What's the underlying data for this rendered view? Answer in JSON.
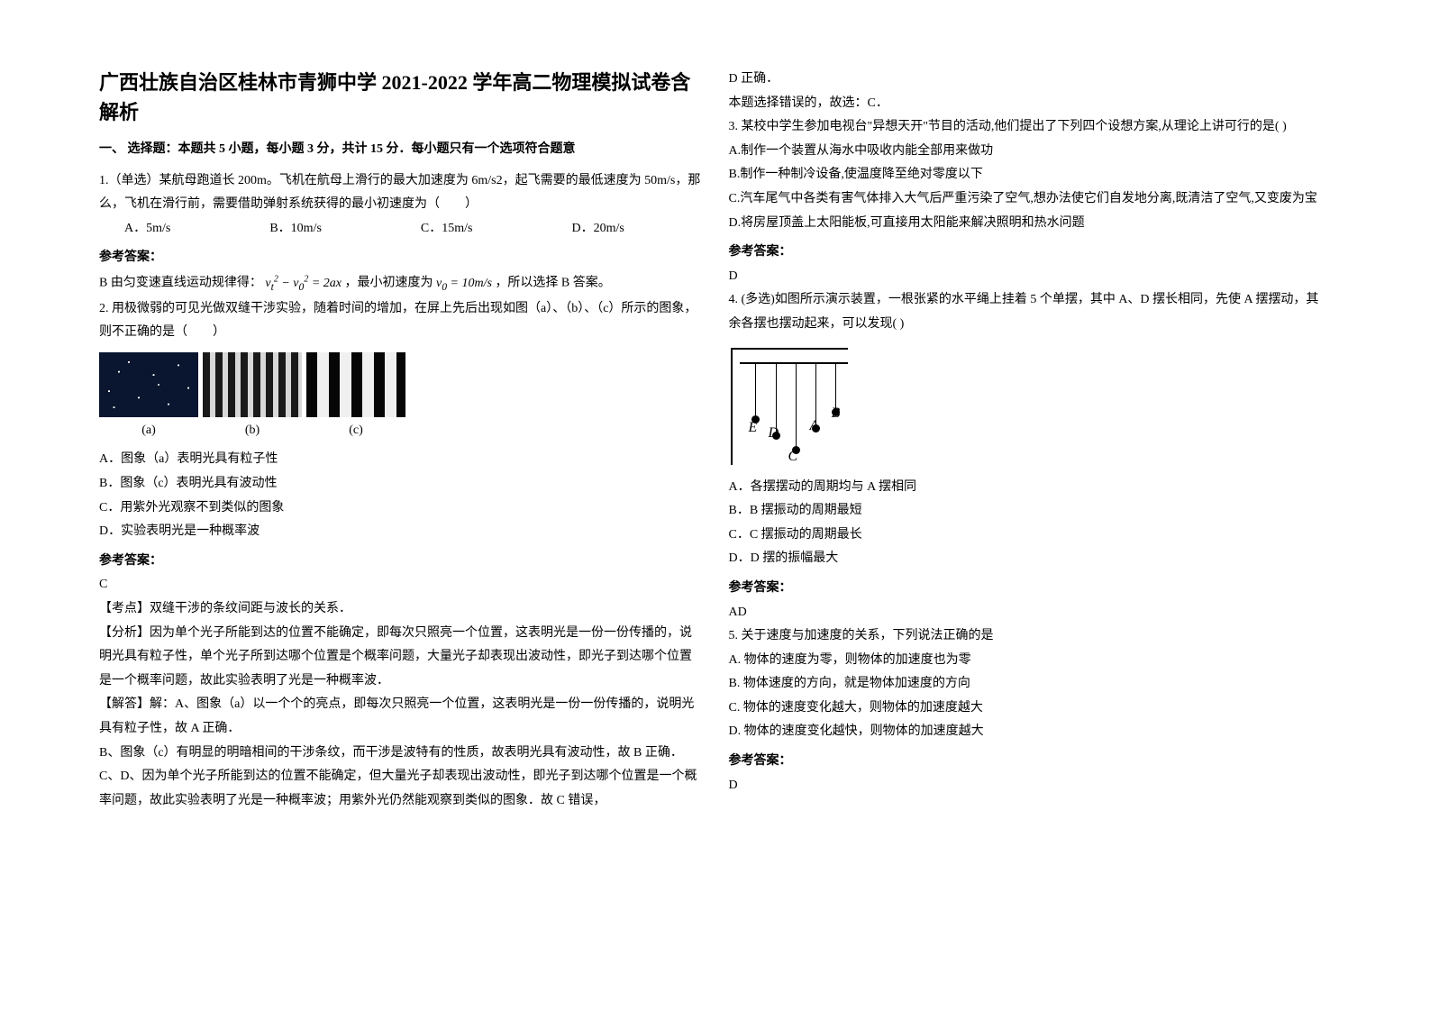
{
  "doc_title": "广西壮族自治区桂林市青狮中学 2021-2022 学年高二物理模拟试卷含解析",
  "section1_head": "一、 选择题：本题共 5 小题，每小题 3 分，共计 15 分．每小题只有一个选项符合题意",
  "q1": {
    "stem": "1.（单选）某航母跑道长 200m。飞机在航母上滑行的最大加速度为 6m/s2，起飞需要的最低速度为 50m/s，那么，飞机在滑行前，需要借助弹射系统获得的最小初速度为（　　）",
    "optA": "A．5m/s",
    "optB": "B．10m/s",
    "optC": "C．15m/s",
    "optD": "D．20m/s",
    "ans_label": "参考答案：",
    "solution": "B 由匀变速直线运动规律得：",
    "formula1": "v<sub>t</sub><sup>2</sup> − v<sub>0</sub><sup>2</sup> = 2ax",
    "mid": "，最小初速度为",
    "formula2": "v<sub>0</sub> = 10m/s",
    "tail": "，所以选择 B 答案。"
  },
  "q2": {
    "stem": "2. 用极微弱的可见光做双缝干涉实验，随着时间的增加，在屏上先后出现如图（a）、（b）、（c）所示的图象，则不正确的是（　　）",
    "capA": "(a)",
    "capB": "(b)",
    "capC": "(c)",
    "optA": "A．图象（a）表明光具有粒子性",
    "optB": "B．图象（c）表明光具有波动性",
    "optC": "C．用紫外光观察不到类似的图象",
    "optD": "D．实验表明光是一种概率波",
    "ans_label": "参考答案：",
    "ans": "C",
    "kp": "【考点】双缝干涉的条纹间距与波长的关系．",
    "fx": "【分析】因为单个光子所能到达的位置不能确定，即每次只照亮一个位置，这表明光是一份一份传播的，说明光具有粒子性，单个光子所到达哪个位置是个概率问题，大量光子却表现出波动性，即光子到达哪个位置是一个概率问题，故此实验表明了光是一种概率波．",
    "jd1": "【解答】解：A、图象（a）以一个个的亮点，即每次只照亮一个位置，这表明光是一份一份传播的，说明光具有粒子性，故 A 正确．",
    "jd2": "B、图象（c）有明显的明暗相间的干涉条纹，而干涉是波特有的性质，故表明光具有波动性，故 B 正确．",
    "jd3": "C、D、因为单个光子所能到达的位置不能确定，但大量光子却表现出波动性，即光子到达哪个位置是一个概率问题，故此实验表明了光是一种概率波；用紫外光仍然能观察到类似的图象．故 C 错误，"
  },
  "right": {
    "cont1": "D 正确．",
    "cont2": "本题选择错误的，故选：C．"
  },
  "q3": {
    "stem": "3. 某校中学生参加电视台\"异想天开\"节目的活动,他们提出了下列四个设想方案,从理论上讲可行的是(    )",
    "optA": "A.制作一个装置从海水中吸收内能全部用来做功",
    "optB": "B.制作一种制冷设备,使温度降至绝对零度以下",
    "optC": "C.汽车尾气中各类有害气体排入大气后严重污染了空气,想办法使它们自发地分离,既清洁了空气,又变废为宝",
    "optD": "D.将房屋顶盖上太阳能板,可直接用太阳能来解决照明和热水问题",
    "ans_label": "参考答案：",
    "ans": "D"
  },
  "q4": {
    "stem": "4. (多选)如图所示演示装置，一根张紧的水平绳上挂着 5 个单摆，其中 A、D 摆长相同，先使 A 摆摆动，其余各摆也摆动起来，可以发现(    )",
    "optA": "A．各摆摆动的周期均与 A 摆相同",
    "optB": "B．B 摆振动的周期最短",
    "optC": "C．C 摆振动的周期最长",
    "optD": "D．D 摆的振幅最大",
    "ans_label": "参考答案：",
    "ans": "AD"
  },
  "q5": {
    "stem": "5. 关于速度与加速度的关系，下列说法正确的是",
    "optA": "A.  物体的速度为零，则物体的加速度也为零",
    "optB": "B.  物体速度的方向，就是物体加速度的方向",
    "optC": "C.  物体的速度变化越大，则物体的加速度越大",
    "optD": "D.  物体的速度变化越快，则物体的加速度越大",
    "ans_label": "参考答案：",
    "ans": "D"
  }
}
